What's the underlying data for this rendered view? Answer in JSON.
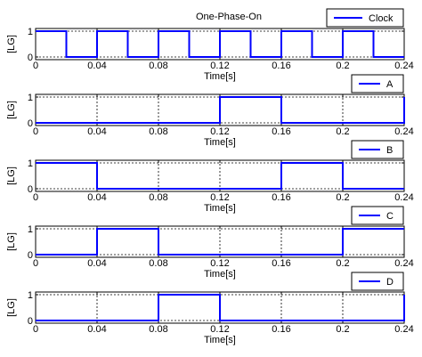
{
  "figure": {
    "title": "One-Phase-On",
    "line_color": "#0000ff",
    "axis_color": "#000000"
  },
  "chart_data": [
    {
      "type": "line",
      "title": "One-Phase-On",
      "xlabel": "Time[s]",
      "ylabel": "[LG]",
      "xlim": [
        0,
        0.24
      ],
      "ylim": [
        0,
        1
      ],
      "xticks": [
        "0",
        "0.04",
        "0.08",
        "0.12",
        "0.16",
        "0.2",
        "0.24"
      ],
      "yticks": [
        "0",
        "1"
      ],
      "grid": true,
      "legend_position": "top-right",
      "series": [
        {
          "name": "Clock",
          "x": [
            0,
            0.02,
            0.02,
            0.04,
            0.04,
            0.06,
            0.06,
            0.08,
            0.08,
            0.1,
            0.1,
            0.12,
            0.12,
            0.14,
            0.14,
            0.16,
            0.16,
            0.18,
            0.18,
            0.2,
            0.2,
            0.22,
            0.22,
            0.24
          ],
          "y": [
            1,
            1,
            0,
            0,
            1,
            1,
            0,
            0,
            1,
            1,
            0,
            0,
            1,
            1,
            0,
            0,
            1,
            1,
            0,
            0,
            1,
            1,
            0,
            0
          ]
        }
      ]
    },
    {
      "type": "line",
      "title": "",
      "xlabel": "Time[s]",
      "ylabel": "[LG]",
      "xlim": [
        0,
        0.24
      ],
      "ylim": [
        0,
        1
      ],
      "xticks": [
        "0",
        "0.04",
        "0.08",
        "0.12",
        "0.16",
        "0.2",
        "0.24"
      ],
      "yticks": [
        "0",
        "1"
      ],
      "grid": true,
      "legend_position": "top-right",
      "series": [
        {
          "name": "A",
          "x": [
            0,
            0.12,
            0.12,
            0.16,
            0.16,
            0.24,
            0.24
          ],
          "y": [
            0,
            0,
            1,
            1,
            0,
            0,
            1
          ]
        }
      ]
    },
    {
      "type": "line",
      "title": "",
      "xlabel": "Time[s]",
      "ylabel": "[LG]",
      "xlim": [
        0,
        0.24
      ],
      "ylim": [
        0,
        1
      ],
      "xticks": [
        "0",
        "0.04",
        "0.08",
        "0.12",
        "0.16",
        "0.2",
        "0.24"
      ],
      "yticks": [
        "0",
        "1"
      ],
      "grid": true,
      "legend_position": "top-right",
      "series": [
        {
          "name": "B",
          "x": [
            0,
            0.04,
            0.04,
            0.16,
            0.16,
            0.2,
            0.2,
            0.24
          ],
          "y": [
            1,
            1,
            0,
            0,
            1,
            1,
            0,
            0
          ]
        }
      ]
    },
    {
      "type": "line",
      "title": "",
      "xlabel": "Time[s]",
      "ylabel": "[LG]",
      "xlim": [
        0,
        0.24
      ],
      "ylim": [
        0,
        1
      ],
      "xticks": [
        "0",
        "0.04",
        "0.08",
        "0.12",
        "0.16",
        "0.2",
        "0.24"
      ],
      "yticks": [
        "0",
        "1"
      ],
      "grid": true,
      "legend_position": "top-right",
      "series": [
        {
          "name": "C",
          "x": [
            0,
            0.04,
            0.04,
            0.08,
            0.08,
            0.2,
            0.2,
            0.24
          ],
          "y": [
            0,
            0,
            1,
            1,
            0,
            0,
            1,
            1
          ]
        }
      ]
    },
    {
      "type": "line",
      "title": "",
      "xlabel": "Time[s]",
      "ylabel": "[LG]",
      "xlim": [
        0,
        0.24
      ],
      "ylim": [
        0,
        1
      ],
      "xticks": [
        "0",
        "0.04",
        "0.08",
        "0.12",
        "0.16",
        "0.2",
        "0.24"
      ],
      "yticks": [
        "0",
        "1"
      ],
      "grid": true,
      "legend_position": "top-right",
      "series": [
        {
          "name": "D",
          "x": [
            0,
            0.08,
            0.08,
            0.12,
            0.12,
            0.24,
            0.24
          ],
          "y": [
            0,
            0,
            1,
            1,
            0,
            0,
            1
          ]
        }
      ]
    }
  ]
}
